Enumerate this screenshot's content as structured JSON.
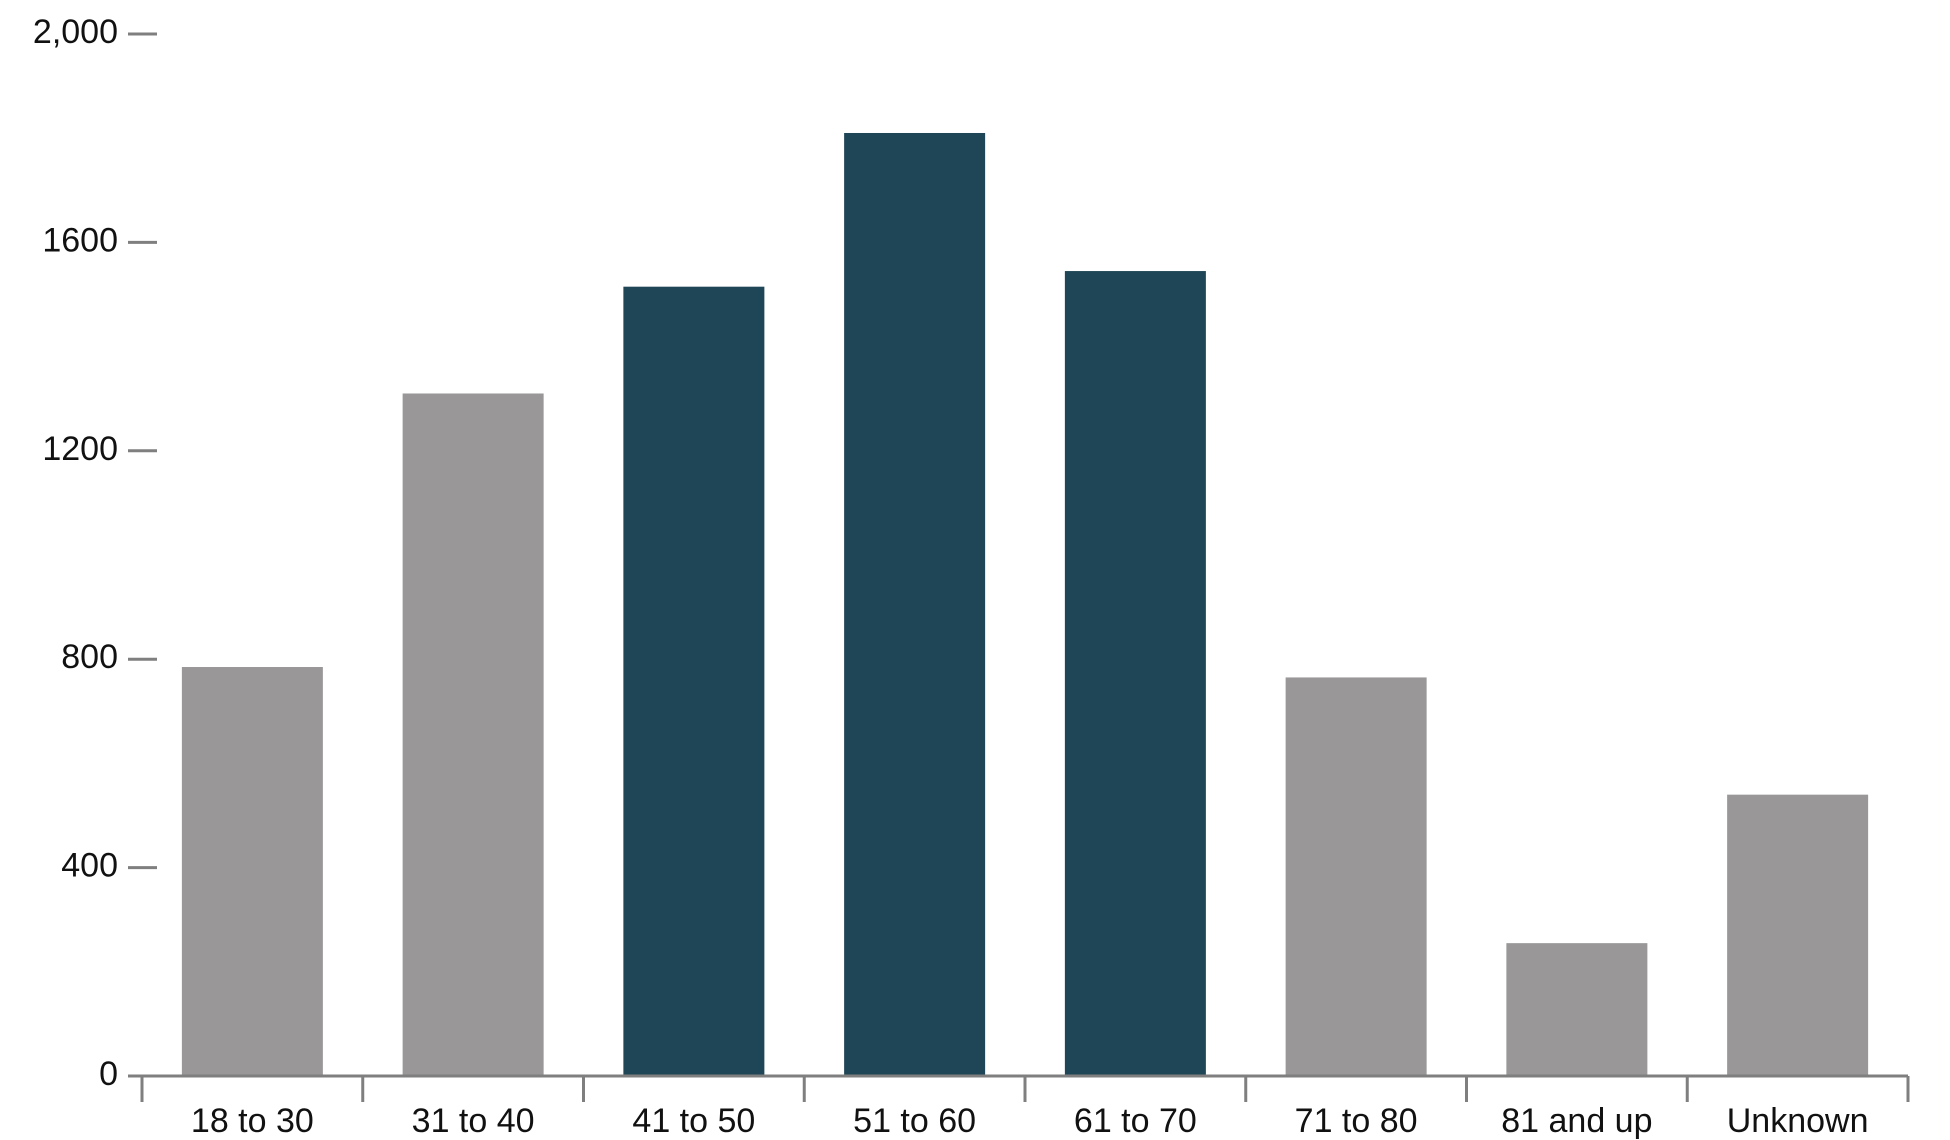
{
  "chart_data": {
    "type": "bar",
    "categories": [
      "18 to 30",
      "31 to 40",
      "41 to 50",
      "51 to 60",
      "61 to 70",
      "71 to 80",
      "81 and up",
      "Unknown"
    ],
    "values": [
      785,
      1310,
      1515,
      1810,
      1545,
      765,
      255,
      540
    ],
    "colors": [
      "#999797",
      "#999797",
      "#1f4656",
      "#1f4656",
      "#1f4656",
      "#999797",
      "#999797",
      "#999797"
    ],
    "ylim": [
      0,
      2000
    ],
    "yticks": [
      0,
      400,
      800,
      1200,
      1600,
      {
        "value": 2000,
        "label": "2,000"
      }
    ],
    "grid": false
  }
}
